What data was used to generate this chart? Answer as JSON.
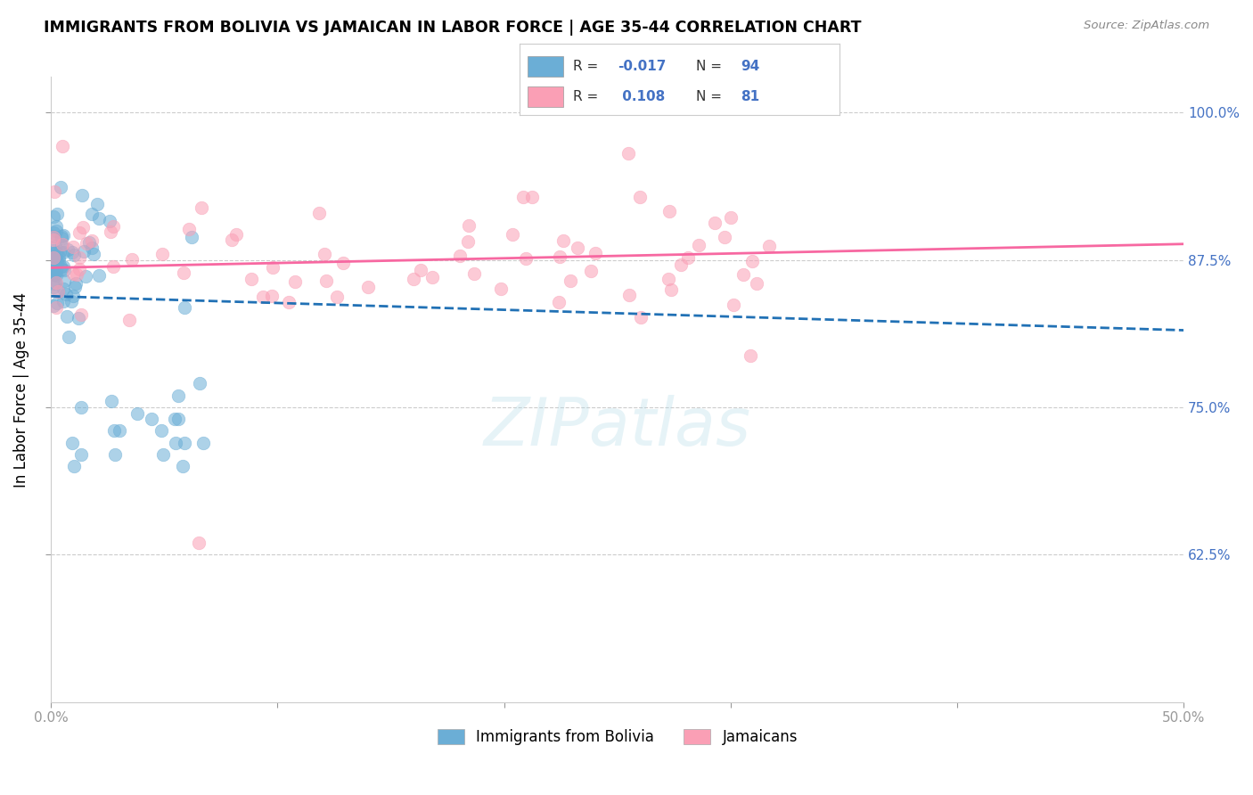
{
  "title": "IMMIGRANTS FROM BOLIVIA VS JAMAICAN IN LABOR FORCE | AGE 35-44 CORRELATION CHART",
  "source_text": "Source: ZipAtlas.com",
  "ylabel": "In Labor Force | Age 35-44",
  "xlim": [
    0.0,
    0.5
  ],
  "ylim": [
    0.5,
    1.03
  ],
  "yticks": [
    0.625,
    0.75,
    0.875,
    1.0
  ],
  "ytick_labels": [
    "62.5%",
    "75.0%",
    "87.5%",
    "100.0%"
  ],
  "xticks": [
    0.0,
    0.1,
    0.2,
    0.3,
    0.4,
    0.5
  ],
  "xtick_labels": [
    "0.0%",
    "",
    "",
    "",
    "",
    "50.0%"
  ],
  "bolivia_R": -0.017,
  "bolivia_N": 94,
  "jamaican_R": 0.108,
  "jamaican_N": 81,
  "bolivia_color": "#6baed6",
  "jamaican_color": "#fa9fb5",
  "bolivia_line_color": "#2171b5",
  "jamaican_line_color": "#f768a1",
  "background_color": "#ffffff",
  "watermark": "ZIPatlas",
  "legend_label_bolivia": "Immigrants from Bolivia",
  "legend_label_jamaican": "Jamaicans"
}
